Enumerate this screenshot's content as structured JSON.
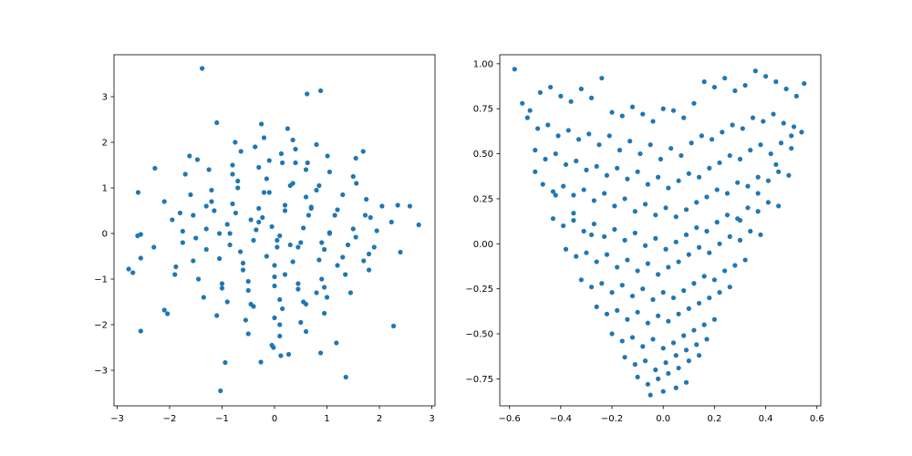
{
  "chart_data": [
    {
      "type": "scatter",
      "color": "#1f77b4",
      "xlim": [
        -3.06,
        3.06
      ],
      "ylim": [
        -3.78,
        3.92
      ],
      "xticks": [
        "−3",
        "−2",
        "−1",
        "0",
        "1",
        "2",
        "3"
      ],
      "yticks": [
        "−3",
        "−2",
        "−1",
        "0",
        "1",
        "2",
        "3"
      ],
      "xtick_values": [
        -3,
        -2,
        -1,
        0,
        1,
        2,
        3
      ],
      "ytick_values": [
        -3,
        -2,
        -1,
        0,
        1,
        2,
        3
      ],
      "grid": false,
      "points": {
        "x": [
          -1.38,
          0.88,
          0.62,
          -1.1,
          -1.03,
          -2.78,
          -2.6,
          -2.28,
          -2.55,
          -1.88,
          -2.1,
          -2.04,
          -2.55,
          -2.7,
          -2.61,
          -2.55,
          1.36,
          -0.94,
          -0.26,
          0.12,
          0.27,
          -0.02,
          0.88,
          1.18,
          2.27,
          2.4,
          2.75,
          2.58,
          2.35,
          1.73,
          1.56,
          -1.47,
          -1.62,
          0.63,
          -0.37,
          -0.64,
          0.13,
          0.4,
          1.01,
          1.55,
          1.69,
          -1.95,
          -1.55,
          -1.15,
          -0.74,
          -0.23,
          0.2,
          0.7,
          1.15,
          1.83,
          2.23,
          -2.3,
          -1.75,
          -1.3,
          -0.85,
          -0.4,
          0.05,
          0.5,
          0.95,
          1.4,
          1.9,
          -2.1,
          -1.6,
          -1.2,
          -0.7,
          -0.1,
          0.3,
          0.8,
          1.3,
          1.75,
          2.05,
          -1.9,
          -1.45,
          -1.0,
          -0.5,
          0.0,
          0.45,
          0.9,
          1.35,
          1.8,
          -1.7,
          -1.25,
          -0.8,
          -0.3,
          0.15,
          0.6,
          1.05,
          1.5,
          -1.35,
          -0.9,
          -0.45,
          0.1,
          0.55,
          1.0,
          1.45,
          -1.1,
          -0.55,
          0.0,
          0.5,
          0.95,
          -0.75,
          -0.2,
          0.35,
          0.8,
          -0.5,
          0.1,
          0.6,
          -0.25,
          0.25,
          -0.05,
          -1.75,
          -1.3,
          -0.85,
          -0.35,
          0.1,
          0.55,
          1.05,
          1.55,
          1.95,
          -1.55,
          -1.05,
          -0.6,
          -0.15,
          0.35,
          0.85,
          1.3,
          1.7,
          -1.3,
          -0.8,
          -0.3,
          0.2,
          0.7,
          1.2,
          -1.0,
          -0.5,
          0.0,
          0.45,
          0.95,
          -0.7,
          -0.15,
          0.35,
          0.85,
          -0.4,
          0.15,
          0.6,
          -0.1,
          0.4,
          0.1,
          -0.9,
          0.9,
          -0.3,
          0.3,
          -1.5,
          1.5,
          -0.6,
          0.6,
          0.0,
          -1.2,
          1.2,
          -0.2,
          0.2,
          -0.8,
          0.8,
          -1.8,
          1.8,
          -0.45,
          0.45,
          -1.05,
          1.05,
          -0.65,
          0.65,
          -0.05,
          0.05
        ],
        "y": [
          3.62,
          3.13,
          3.06,
          2.43,
          -3.45,
          -0.78,
          0.9,
          1.43,
          -0.02,
          -0.73,
          -1.68,
          -1.76,
          -0.54,
          -0.86,
          -0.05,
          -2.14,
          -3.15,
          -2.83,
          -2.82,
          -2.68,
          -2.65,
          -2.5,
          -2.62,
          -2.4,
          -2.03,
          -0.41,
          0.19,
          0.6,
          0.62,
          0.4,
          1.1,
          1.62,
          1.7,
          1.55,
          1.9,
          1.8,
          1.75,
          1.85,
          1.7,
          1.65,
          1.8,
          0.3,
          0.4,
          0.5,
          0.45,
          0.35,
          0.5,
          0.55,
          0.4,
          0.35,
          0.25,
          -0.3,
          -0.2,
          -0.35,
          -0.25,
          -0.15,
          -0.3,
          -0.2,
          -0.35,
          -0.25,
          -0.3,
          0.7,
          0.85,
          0.95,
          1.0,
          0.9,
          1.05,
          0.95,
          0.85,
          0.75,
          0.6,
          -0.9,
          -1.0,
          -1.1,
          -1.05,
          -0.95,
          -1.1,
          -1.0,
          -0.9,
          -0.8,
          1.3,
          1.4,
          1.5,
          1.45,
          1.55,
          1.4,
          1.35,
          1.25,
          -1.4,
          -1.5,
          -1.55,
          -1.45,
          -1.5,
          -1.4,
          -1.3,
          -1.8,
          -1.9,
          -1.85,
          -1.95,
          -1.75,
          2.0,
          2.1,
          2.05,
          1.95,
          -2.2,
          -2.25,
          -2.15,
          2.4,
          2.3,
          -2.45,
          0.05,
          0.1,
          0.0,
          0.08,
          -0.05,
          0.12,
          0.02,
          -0.08,
          0.06,
          -0.6,
          -0.55,
          -0.65,
          -0.5,
          -0.62,
          -0.58,
          -0.52,
          -0.6,
          0.6,
          0.65,
          0.55,
          0.62,
          0.58,
          0.52,
          -1.2,
          -1.25,
          -1.15,
          -1.22,
          -1.18,
          1.15,
          1.2,
          1.1,
          1.05,
          -1.6,
          -1.65,
          -1.55,
          1.6,
          1.55,
          -2.0,
          0.2,
          -0.2,
          0.25,
          -0.25,
          -0.1,
          0.1,
          -0.8,
          0.8,
          -0.7,
          0.7,
          -0.7,
          0.9,
          -0.9,
          1.3,
          -1.3,
          0.45,
          -0.45,
          0.3,
          -0.3,
          0.0,
          0.0,
          -0.4,
          0.4,
          0.15,
          -0.15
        ]
      }
    },
    {
      "type": "scatter",
      "color": "#1f77b4",
      "xlim": [
        -0.638,
        0.615
      ],
      "ylim": [
        -0.9,
        1.05
      ],
      "xticks": [
        "−0.6",
        "−0.4",
        "−0.2",
        "0.0",
        "0.2",
        "0.4",
        "0.6"
      ],
      "yticks": [
        "−0.75",
        "−0.50",
        "−0.25",
        "0.00",
        "0.25",
        "0.50",
        "0.75",
        "1.00"
      ],
      "xtick_values": [
        -0.6,
        -0.4,
        -0.2,
        0.0,
        0.2,
        0.4,
        0.6
      ],
      "ytick_values": [
        -0.75,
        -0.5,
        -0.25,
        0.0,
        0.25,
        0.5,
        0.75,
        1.0
      ],
      "grid": false,
      "points": {
        "x": [
          -0.58,
          -0.55,
          -0.52,
          -0.48,
          -0.44,
          -0.4,
          -0.36,
          -0.32,
          -0.28,
          -0.24,
          -0.2,
          -0.16,
          -0.12,
          -0.08,
          -0.04,
          0.0,
          0.04,
          0.08,
          0.12,
          0.16,
          0.2,
          0.24,
          0.28,
          0.32,
          0.36,
          0.4,
          0.44,
          0.48,
          0.52,
          0.55,
          -0.53,
          -0.49,
          -0.45,
          -0.41,
          -0.37,
          -0.33,
          -0.29,
          -0.25,
          -0.21,
          -0.17,
          -0.13,
          -0.09,
          -0.05,
          -0.01,
          0.03,
          0.07,
          0.11,
          0.15,
          0.19,
          0.23,
          0.27,
          0.31,
          0.35,
          0.39,
          0.43,
          0.47,
          0.51,
          0.54,
          -0.5,
          -0.46,
          -0.42,
          -0.38,
          -0.34,
          -0.3,
          -0.26,
          -0.22,
          -0.18,
          -0.14,
          -0.1,
          -0.06,
          -0.02,
          0.02,
          0.06,
          0.1,
          0.14,
          0.18,
          0.22,
          0.26,
          0.3,
          0.34,
          0.38,
          0.42,
          0.46,
          0.5,
          -0.47,
          -0.43,
          -0.39,
          -0.35,
          -0.31,
          -0.27,
          -0.23,
          -0.19,
          -0.15,
          -0.11,
          -0.07,
          -0.03,
          0.01,
          0.05,
          0.09,
          0.13,
          0.17,
          0.21,
          0.25,
          0.29,
          0.33,
          0.37,
          0.41,
          0.45,
          0.49,
          -0.43,
          -0.39,
          -0.35,
          -0.31,
          -0.27,
          -0.23,
          -0.19,
          -0.15,
          -0.11,
          -0.07,
          -0.03,
          0.01,
          0.05,
          0.09,
          0.13,
          0.17,
          0.21,
          0.25,
          0.29,
          0.33,
          0.37,
          0.41,
          0.45,
          -0.38,
          -0.34,
          -0.3,
          -0.26,
          -0.22,
          -0.18,
          -0.14,
          -0.1,
          -0.06,
          -0.02,
          0.02,
          0.06,
          0.1,
          0.14,
          0.18,
          0.22,
          0.26,
          0.3,
          0.34,
          0.38,
          -0.32,
          -0.28,
          -0.24,
          -0.2,
          -0.16,
          -0.12,
          -0.08,
          -0.04,
          0.0,
          0.04,
          0.08,
          0.12,
          0.16,
          0.2,
          0.24,
          0.28,
          0.32,
          -0.26,
          -0.22,
          -0.18,
          -0.14,
          -0.1,
          -0.06,
          -0.02,
          0.02,
          0.06,
          0.1,
          0.14,
          0.18,
          0.22,
          0.26,
          -0.2,
          -0.16,
          -0.12,
          -0.08,
          -0.04,
          0.0,
          0.04,
          0.08,
          0.12,
          0.16,
          0.2,
          -0.15,
          -0.11,
          -0.07,
          -0.03,
          0.01,
          0.05,
          0.09,
          0.13,
          0.17,
          -0.1,
          -0.06,
          -0.02,
          0.02,
          0.06,
          0.1,
          0.14,
          -0.05,
          0.0,
          0.05,
          0.09,
          -0.5,
          -0.42,
          -0.35,
          -0.28,
          0.3,
          0.37,
          0.44,
          0.5
        ],
        "y": [
          0.97,
          0.78,
          0.74,
          0.84,
          0.87,
          0.82,
          0.79,
          0.86,
          0.81,
          0.92,
          0.73,
          0.71,
          0.76,
          0.72,
          0.68,
          0.75,
          0.74,
          0.7,
          0.78,
          0.9,
          0.87,
          0.92,
          0.85,
          0.88,
          0.96,
          0.93,
          0.9,
          0.86,
          0.82,
          0.89,
          0.7,
          0.64,
          0.66,
          0.6,
          0.63,
          0.58,
          0.61,
          0.55,
          0.6,
          0.52,
          0.57,
          0.5,
          0.55,
          0.47,
          0.53,
          0.49,
          0.56,
          0.6,
          0.58,
          0.62,
          0.66,
          0.64,
          0.7,
          0.68,
          0.72,
          0.67,
          0.65,
          0.62,
          0.52,
          0.47,
          0.5,
          0.44,
          0.46,
          0.41,
          0.43,
          0.38,
          0.42,
          0.36,
          0.4,
          0.33,
          0.37,
          0.31,
          0.35,
          0.39,
          0.37,
          0.42,
          0.45,
          0.49,
          0.47,
          0.52,
          0.55,
          0.5,
          0.56,
          0.53,
          0.33,
          0.29,
          0.32,
          0.27,
          0.3,
          0.24,
          0.28,
          0.21,
          0.25,
          0.18,
          0.22,
          0.16,
          0.2,
          0.15,
          0.19,
          0.23,
          0.26,
          0.3,
          0.28,
          0.34,
          0.32,
          0.37,
          0.35,
          0.4,
          0.38,
          0.14,
          0.1,
          0.13,
          0.07,
          0.11,
          0.04,
          0.08,
          0.02,
          0.06,
          -0.01,
          0.03,
          -0.03,
          0.01,
          0.05,
          0.09,
          0.07,
          0.12,
          0.16,
          0.14,
          0.2,
          0.18,
          0.23,
          0.21,
          -0.03,
          -0.07,
          -0.05,
          -0.1,
          -0.06,
          -0.13,
          -0.09,
          -0.15,
          -0.11,
          -0.17,
          -0.13,
          -0.1,
          -0.06,
          -0.02,
          -0.05,
          0.0,
          0.04,
          0.02,
          0.07,
          0.05,
          -0.2,
          -0.24,
          -0.22,
          -0.27,
          -0.23,
          -0.29,
          -0.25,
          -0.31,
          -0.27,
          -0.3,
          -0.26,
          -0.22,
          -0.18,
          -0.2,
          -0.15,
          -0.12,
          -0.09,
          -0.35,
          -0.39,
          -0.37,
          -0.42,
          -0.38,
          -0.44,
          -0.4,
          -0.43,
          -0.39,
          -0.36,
          -0.33,
          -0.3,
          -0.27,
          -0.24,
          -0.5,
          -0.54,
          -0.52,
          -0.57,
          -0.53,
          -0.58,
          -0.55,
          -0.51,
          -0.48,
          -0.45,
          -0.42,
          -0.63,
          -0.67,
          -0.65,
          -0.7,
          -0.66,
          -0.62,
          -0.59,
          -0.56,
          -0.53,
          -0.74,
          -0.78,
          -0.75,
          -0.72,
          -0.69,
          -0.65,
          -0.62,
          -0.84,
          -0.82,
          -0.8,
          -0.77,
          0.4,
          0.27,
          0.17,
          0.05,
          0.13,
          0.28,
          0.44,
          0.6
        ]
      }
    }
  ]
}
